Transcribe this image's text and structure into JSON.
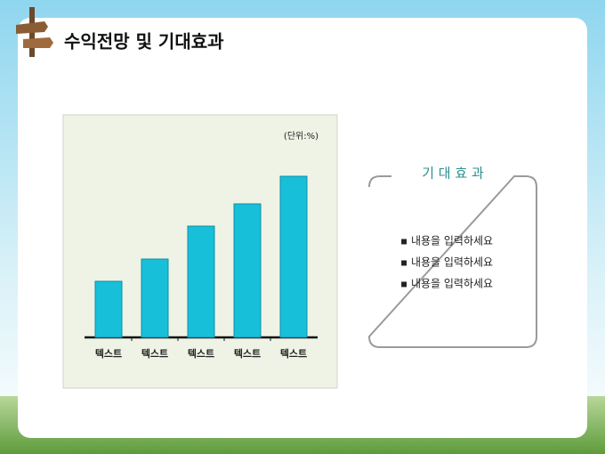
{
  "slide": {
    "title": "수익전망 및 기대효과",
    "box": {
      "heading": "기 대 효 과",
      "items": [
        "▪ 내용을 입력하세요",
        "▪ 내용을 입력하세요",
        "▪ 내용을 입력하세요"
      ]
    }
  },
  "chart_data": {
    "type": "bar",
    "ylabel": "(단위:%)",
    "categories": [
      "텍스트",
      "텍스트",
      "텍스트",
      "텍스트",
      "텍스트"
    ],
    "values": [
      63,
      88,
      125,
      150,
      181
    ],
    "color": "#17bfd9",
    "ylim": [
      0,
      200
    ]
  }
}
